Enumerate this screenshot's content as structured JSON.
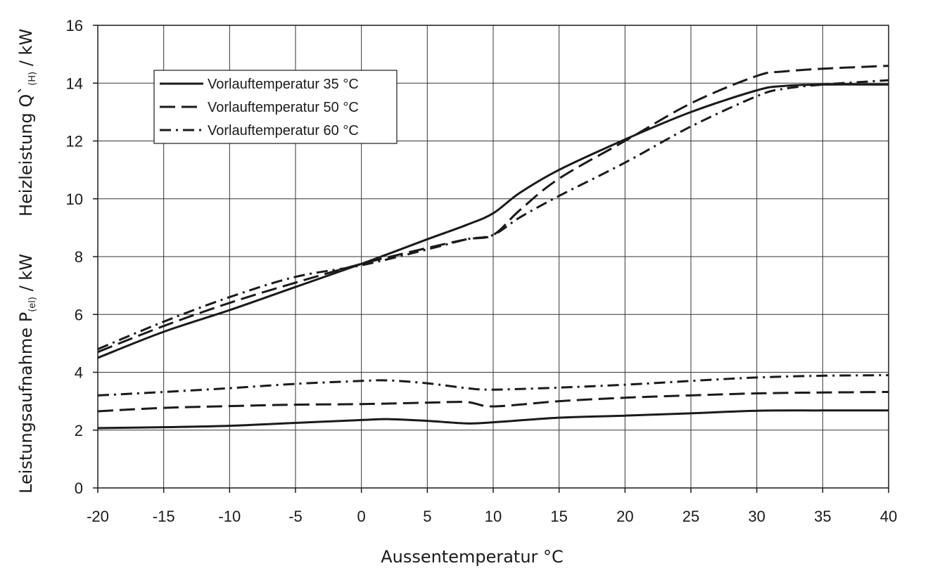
{
  "chart_data": {
    "type": "line",
    "xlabel": "Aussentemperatur °C",
    "ylabel_lower": {
      "main": "Leistungsaufnahme P",
      "sub": "(el)",
      "unit": " / kW"
    },
    "ylabel_upper": {
      "main": "Heizleistung Q`",
      "sub": "(H)",
      "unit": " / kW"
    },
    "xlim": [
      -20,
      40
    ],
    "ylim": [
      0,
      16
    ],
    "xticks": [
      -20,
      -15,
      -10,
      -5,
      0,
      5,
      10,
      15,
      20,
      25,
      30,
      35,
      40
    ],
    "yticks": [
      0,
      2,
      4,
      6,
      8,
      10,
      12,
      14,
      16
    ],
    "grid": true,
    "legend_position": "top-left",
    "line_color": "#1a1a1a",
    "legend": [
      {
        "label": "Vorlauftemperatur 35 °C",
        "style": "solid"
      },
      {
        "label": "Vorlauftemperatur 50 °C",
        "style": "dashed"
      },
      {
        "label": "Vorlauftemperatur 60 °C",
        "style": "dashdot"
      }
    ],
    "series": [
      {
        "group": "heizleistung",
        "legend_index": 0,
        "style": "solid",
        "x": [
          -20,
          -15,
          -10,
          -5,
          0,
          5,
          8,
          10,
          12,
          15,
          20,
          25,
          30,
          32,
          35,
          40
        ],
        "y": [
          4.5,
          5.4,
          6.15,
          6.95,
          7.75,
          8.6,
          9.1,
          9.5,
          10.2,
          11.0,
          12.05,
          13.0,
          13.75,
          13.9,
          13.95,
          13.95
        ]
      },
      {
        "group": "heizleistung",
        "legend_index": 1,
        "style": "dashed",
        "x": [
          -20,
          -15,
          -10,
          -5,
          0,
          5,
          8,
          10,
          12,
          15,
          20,
          25,
          30,
          32,
          35,
          40
        ],
        "y": [
          4.7,
          5.6,
          6.4,
          7.1,
          7.75,
          8.3,
          8.6,
          8.75,
          9.6,
          10.7,
          12.0,
          13.3,
          14.25,
          14.4,
          14.5,
          14.6
        ]
      },
      {
        "group": "heizleistung",
        "legend_index": 2,
        "style": "dashdot",
        "x": [
          -20,
          -15,
          -10,
          -5,
          0,
          5,
          8,
          10,
          12,
          15,
          20,
          25,
          30,
          32,
          35,
          40
        ],
        "y": [
          4.8,
          5.75,
          6.6,
          7.3,
          7.7,
          8.25,
          8.6,
          8.75,
          9.35,
          10.1,
          11.25,
          12.5,
          13.55,
          13.8,
          13.95,
          14.1
        ]
      },
      {
        "group": "leistungsaufnahme",
        "legend_index": 0,
        "style": "solid",
        "x": [
          -20,
          -15,
          -10,
          -5,
          0,
          2,
          5,
          8,
          10,
          15,
          20,
          25,
          30,
          35,
          40
        ],
        "y": [
          2.07,
          2.1,
          2.15,
          2.25,
          2.35,
          2.38,
          2.32,
          2.23,
          2.27,
          2.43,
          2.5,
          2.58,
          2.67,
          2.68,
          2.68
        ]
      },
      {
        "group": "leistungsaufnahme",
        "legend_index": 1,
        "style": "dashed",
        "x": [
          -20,
          -15,
          -10,
          -5,
          0,
          5,
          8,
          10,
          15,
          20,
          25,
          30,
          35,
          40
        ],
        "y": [
          2.65,
          2.77,
          2.83,
          2.88,
          2.9,
          2.95,
          2.97,
          2.82,
          3.0,
          3.12,
          3.2,
          3.27,
          3.3,
          3.32
        ]
      },
      {
        "group": "leistungsaufnahme",
        "legend_index": 2,
        "style": "dashdot",
        "x": [
          -20,
          -15,
          -10,
          -5,
          0,
          2,
          5,
          8,
          10,
          15,
          20,
          25,
          30,
          35,
          40
        ],
        "y": [
          3.2,
          3.32,
          3.45,
          3.6,
          3.7,
          3.72,
          3.62,
          3.45,
          3.4,
          3.47,
          3.57,
          3.7,
          3.82,
          3.88,
          3.9
        ]
      }
    ]
  }
}
